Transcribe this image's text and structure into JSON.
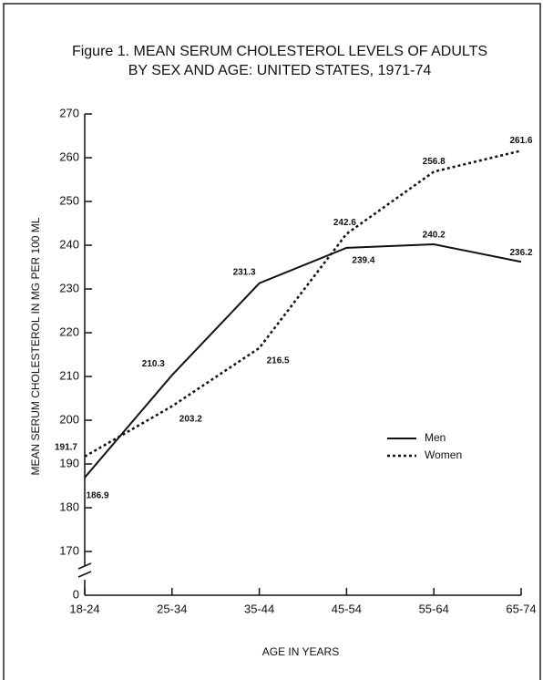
{
  "chart_data": {
    "type": "line",
    "title": "Figure 1. MEAN SERUM CHOLESTEROL LEVELS OF ADULTS",
    "subtitle": "BY SEX AND AGE: UNITED STATES, 1971-74",
    "y_label": "MEAN SERUM CHOLESTEROL IN MG PER 100 ML",
    "x_label": "AGE IN YEARS",
    "categories": [
      "18-24",
      "25-34",
      "35-44",
      "45-54",
      "55-64",
      "65-74"
    ],
    "series": [
      {
        "name": "Men",
        "color": "#111111",
        "dash": "solid",
        "values": [
          186.9,
          210.3,
          231.3,
          239.4,
          240.2,
          236.2
        ]
      },
      {
        "name": "Women",
        "color": "#111111",
        "dash": "dotted",
        "values": [
          191.7,
          203.2,
          216.5,
          242.6,
          256.8,
          261.6
        ]
      }
    ],
    "ylim": [
      160,
      270
    ],
    "yticks": [
      170,
      180,
      190,
      200,
      210,
      220,
      230,
      240,
      250,
      260,
      270
    ],
    "ybreak_tick": 0,
    "legend": "right"
  }
}
